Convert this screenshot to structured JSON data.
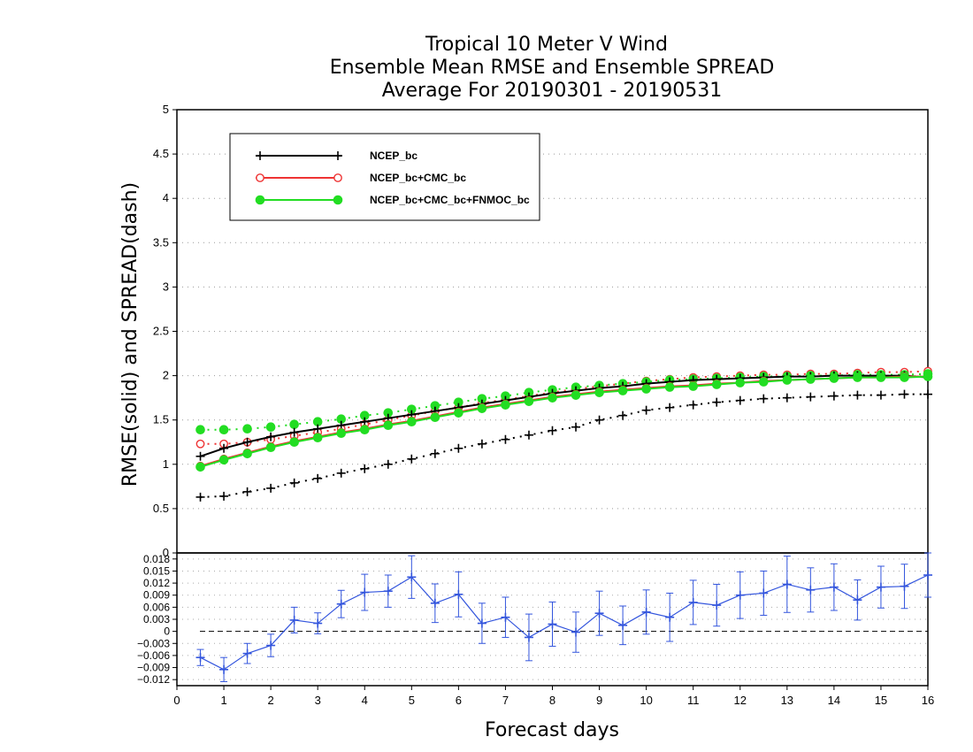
{
  "chart_data": [
    {
      "type": "line",
      "title": [
        "Tropical 10 Meter V Wind",
        "Ensemble Mean RMSE and Ensemble SPREAD",
        "Average For 20190301 - 20190531"
      ],
      "ylabel": "RMSE(solid) and SPREAD(dash)",
      "xlabel": "Forecast days",
      "xlim": [
        0,
        16
      ],
      "ylim": [
        0,
        5
      ],
      "yticks": [
        "0",
        "0.5",
        "1",
        "1.5",
        "2",
        "2.5",
        "3",
        "3.5",
        "4",
        "4.5",
        "5"
      ],
      "grid": true,
      "legend_position": "top-left",
      "x": [
        0.5,
        1,
        1.5,
        2,
        2.5,
        3,
        3.5,
        4,
        4.5,
        5,
        5.5,
        6,
        6.5,
        7,
        7.5,
        8,
        8.5,
        9,
        9.5,
        10,
        10.5,
        11,
        11.5,
        12,
        12.5,
        13,
        13.5,
        14,
        14.5,
        15,
        15.5,
        16
      ],
      "series": [
        {
          "name": "NCEP_bc",
          "color": "#000000",
          "marker": "plus",
          "kind": "rmse",
          "values": [
            1.09,
            1.18,
            1.25,
            1.31,
            1.36,
            1.4,
            1.44,
            1.48,
            1.52,
            1.56,
            1.6,
            1.64,
            1.68,
            1.72,
            1.76,
            1.8,
            1.83,
            1.86,
            1.88,
            1.91,
            1.93,
            1.95,
            1.96,
            1.97,
            1.98,
            1.99,
            1.99,
            2.0,
            2.0,
            2.0,
            2.0,
            1.98
          ]
        },
        {
          "name": "",
          "color": "#000000",
          "marker": "plus",
          "kind": "spread",
          "values": [
            0.63,
            0.64,
            0.69,
            0.73,
            0.79,
            0.84,
            0.9,
            0.95,
            1.0,
            1.06,
            1.12,
            1.18,
            1.23,
            1.28,
            1.33,
            1.38,
            1.42,
            1.5,
            1.55,
            1.61,
            1.64,
            1.67,
            1.7,
            1.72,
            1.74,
            1.75,
            1.76,
            1.77,
            1.78,
            1.78,
            1.79,
            1.79
          ]
        },
        {
          "name": "NCEP_bc+CMC_bc",
          "color": "#ee3333",
          "marker": "open-circle",
          "kind": "rmse",
          "values": [
            0.98,
            1.06,
            1.13,
            1.2,
            1.26,
            1.31,
            1.36,
            1.4,
            1.45,
            1.49,
            1.54,
            1.59,
            1.64,
            1.68,
            1.72,
            1.76,
            1.79,
            1.82,
            1.84,
            1.86,
            1.88,
            1.89,
            1.91,
            1.92,
            1.94,
            1.95,
            1.96,
            1.97,
            1.98,
            1.98,
            1.99,
            1.99
          ]
        },
        {
          "name": "",
          "color": "#ee3333",
          "marker": "open-circle",
          "kind": "spread",
          "values": [
            1.23,
            1.23,
            1.25,
            1.28,
            1.32,
            1.36,
            1.4,
            1.45,
            1.5,
            1.55,
            1.6,
            1.64,
            1.69,
            1.73,
            1.77,
            1.81,
            1.85,
            1.88,
            1.91,
            1.94,
            1.96,
            1.98,
            1.99,
            2.0,
            2.01,
            2.01,
            2.02,
            2.02,
            2.03,
            2.04,
            2.04,
            2.05
          ]
        },
        {
          "name": "NCEP_bc+CMC_bc+FNMOC_bc",
          "color": "#22dd22",
          "marker": "filled-circle",
          "kind": "rmse",
          "values": [
            0.97,
            1.05,
            1.12,
            1.19,
            1.25,
            1.3,
            1.35,
            1.39,
            1.44,
            1.48,
            1.53,
            1.58,
            1.63,
            1.67,
            1.71,
            1.75,
            1.78,
            1.81,
            1.83,
            1.85,
            1.87,
            1.88,
            1.9,
            1.92,
            1.93,
            1.95,
            1.96,
            1.97,
            1.98,
            1.98,
            1.98,
            1.99
          ]
        },
        {
          "name": "",
          "color": "#22dd22",
          "marker": "filled-circle",
          "kind": "spread",
          "values": [
            1.39,
            1.39,
            1.4,
            1.42,
            1.45,
            1.48,
            1.51,
            1.55,
            1.58,
            1.62,
            1.66,
            1.7,
            1.74,
            1.77,
            1.81,
            1.84,
            1.87,
            1.89,
            1.91,
            1.93,
            1.95,
            1.96,
            1.97,
            1.98,
            1.99,
            1.99,
            2.0,
            2.0,
            2.01,
            2.01,
            2.01,
            2.02
          ]
        }
      ]
    },
    {
      "type": "line",
      "title": "",
      "xlabel": "Forecast days",
      "xlim": [
        0,
        16
      ],
      "xticks": [
        "0",
        "1",
        "2",
        "3",
        "4",
        "5",
        "6",
        "7",
        "8",
        "9",
        "10",
        "11",
        "12",
        "13",
        "14",
        "15",
        "16"
      ],
      "ylim": [
        -0.0135,
        0.0195
      ],
      "yticks": [
        "−0.012",
        "−0.009",
        "−0.006",
        "−0.003",
        "0",
        "0.003",
        "0.006",
        "0.009",
        "0.012",
        "0.015",
        "0.018"
      ],
      "grid": true,
      "reference_line": 0,
      "x": [
        0.5,
        1,
        1.5,
        2,
        2.5,
        3,
        3.5,
        4,
        4.5,
        5,
        5.5,
        6,
        6.5,
        7,
        7.5,
        8,
        8.5,
        9,
        9.5,
        10,
        10.5,
        11,
        11.5,
        12,
        12.5,
        13,
        13.5,
        14,
        14.5,
        15,
        15.5,
        16
      ],
      "series": [
        {
          "name": "",
          "color": "#3355dd",
          "values": [
            -0.0065,
            -0.0095,
            -0.0055,
            -0.0035,
            0.0028,
            0.002,
            0.0068,
            0.0097,
            0.01,
            0.0135,
            0.007,
            0.0092,
            0.002,
            0.0035,
            -0.0015,
            0.0018,
            -0.0002,
            0.0045,
            0.0015,
            0.0048,
            0.0035,
            0.0072,
            0.0065,
            0.009,
            0.0095,
            0.0117,
            0.0103,
            0.011,
            0.0078,
            0.011,
            0.0112,
            0.014
          ],
          "error": [
            0.002,
            0.003,
            0.0025,
            0.0028,
            0.0032,
            0.0026,
            0.0034,
            0.0045,
            0.004,
            0.0053,
            0.0048,
            0.0056,
            0.005,
            0.005,
            0.0058,
            0.0055,
            0.005,
            0.0055,
            0.0048,
            0.0055,
            0.006,
            0.0055,
            0.0052,
            0.0058,
            0.0055,
            0.007,
            0.0055,
            0.0058,
            0.005,
            0.0052,
            0.0055,
            0.0055
          ]
        }
      ]
    }
  ]
}
